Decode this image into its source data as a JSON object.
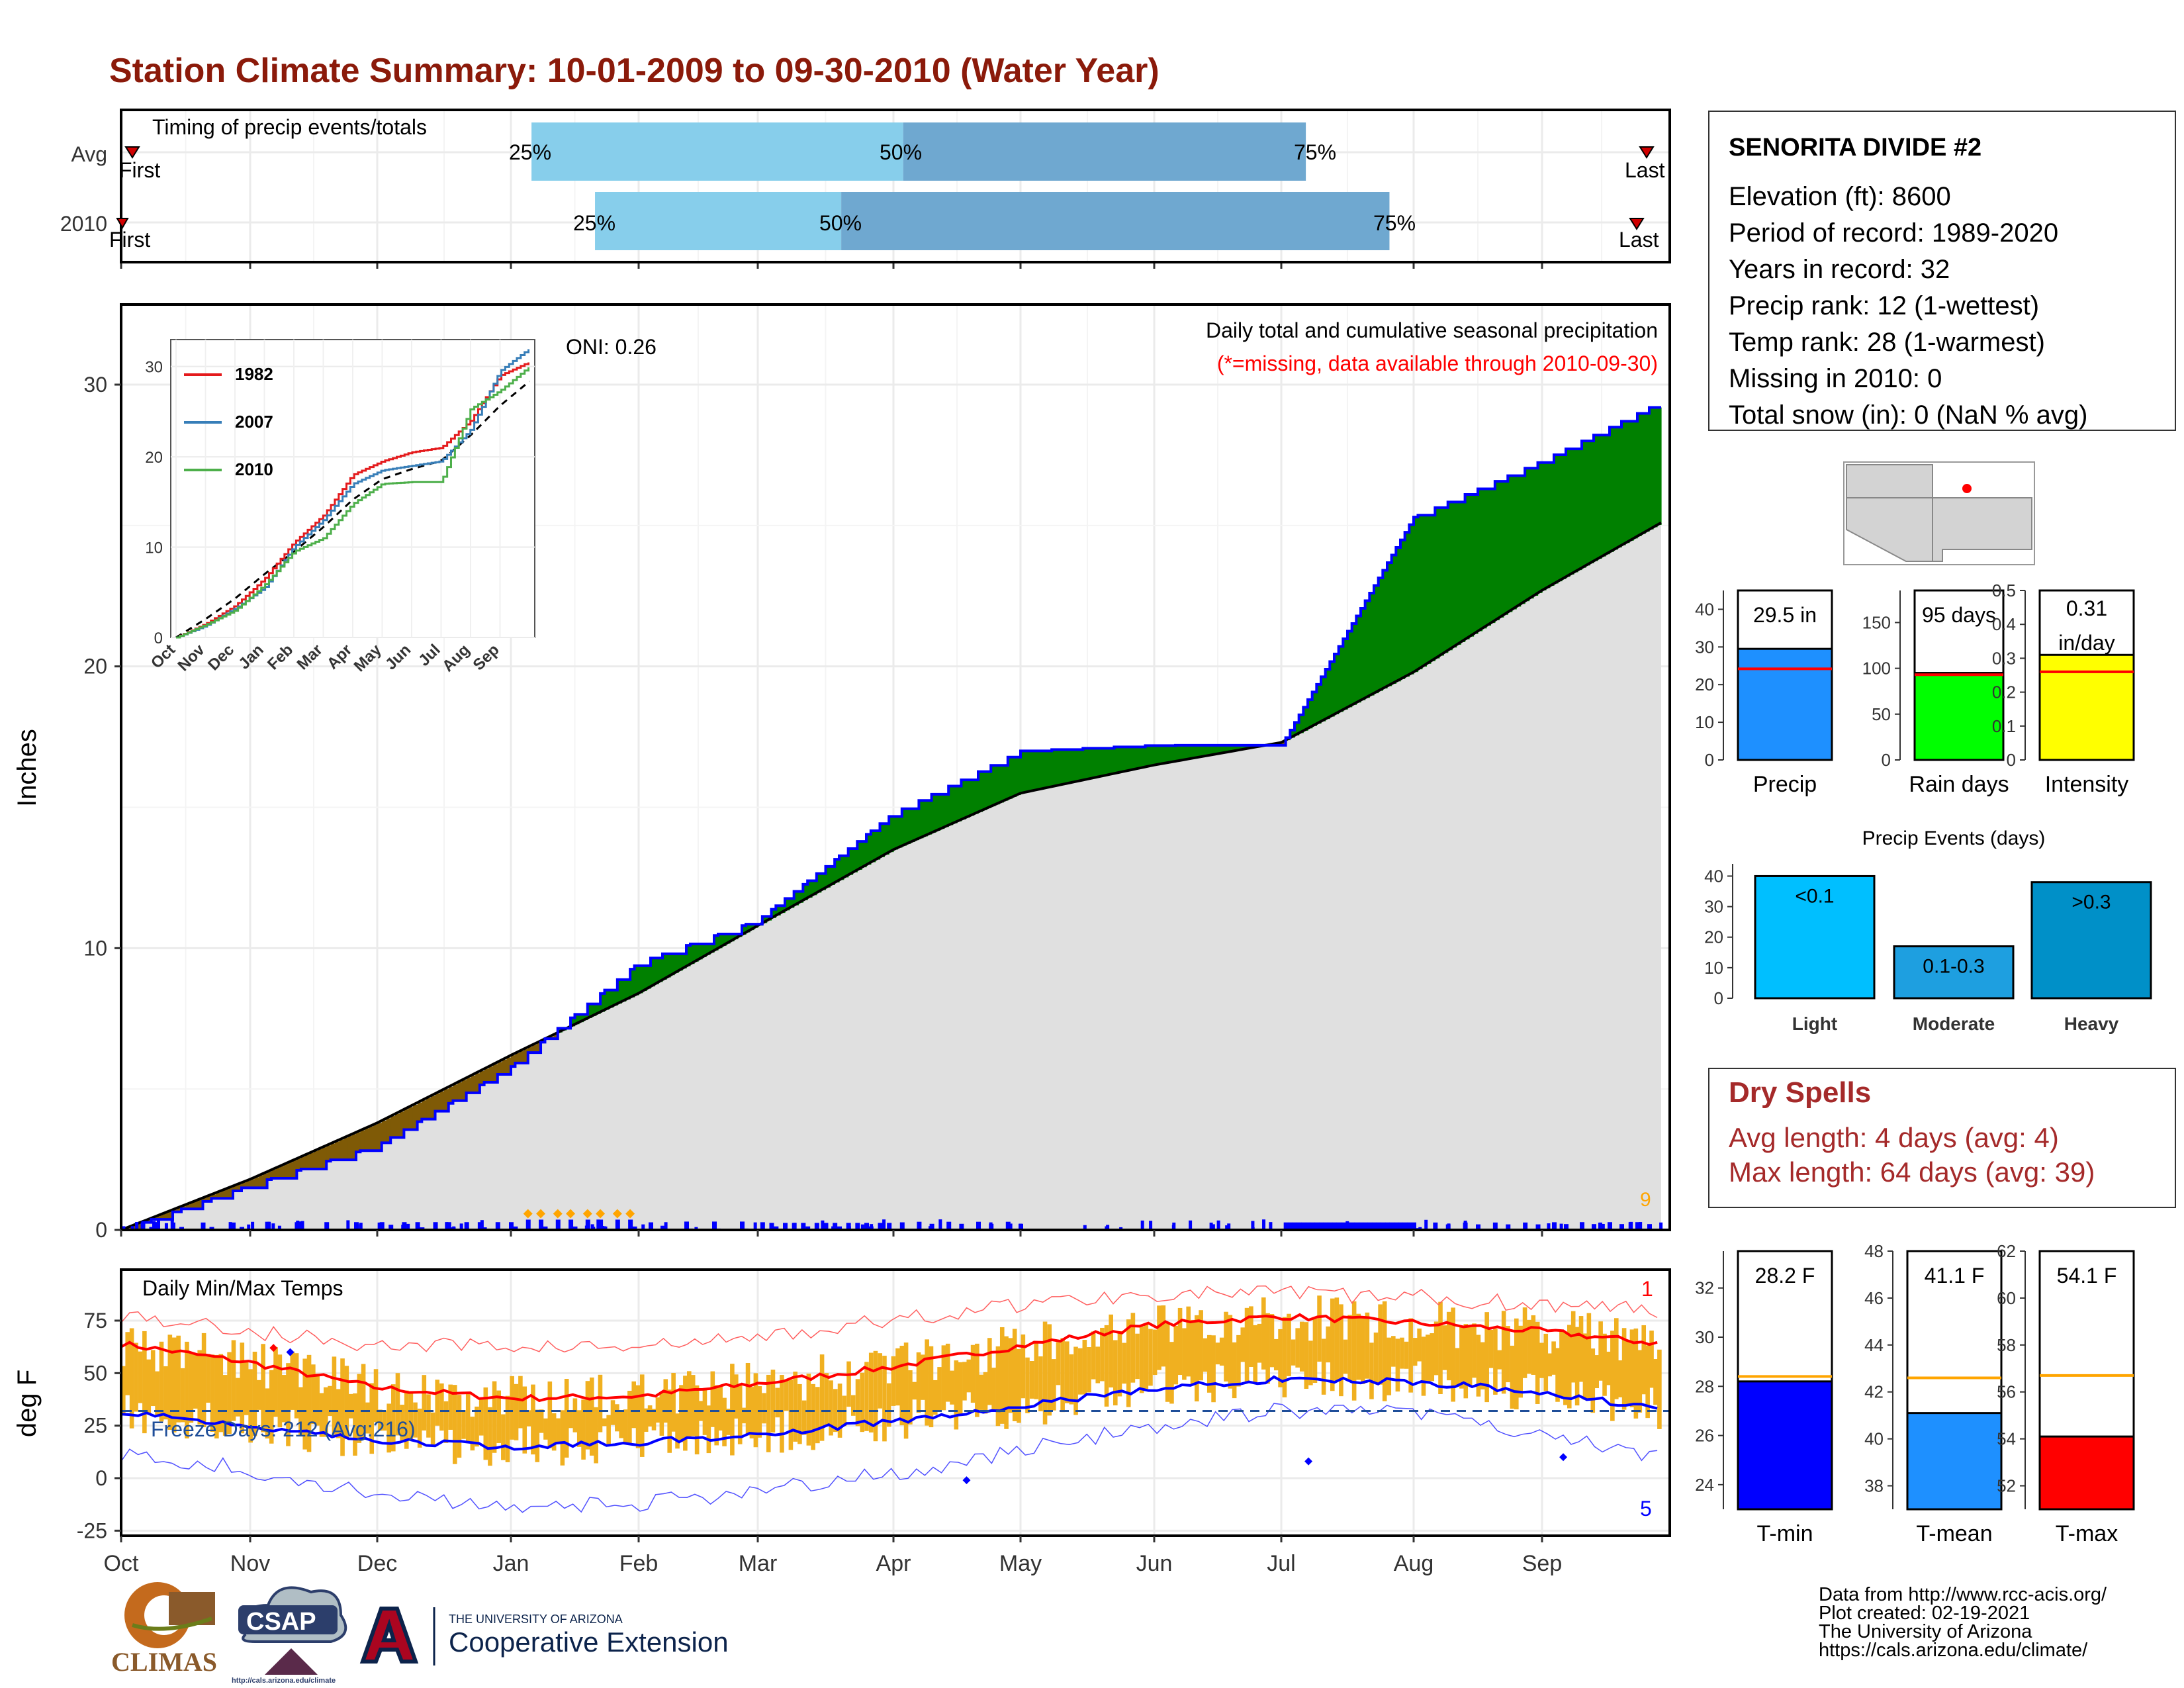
{
  "title": "Station Climate Summary: 10-01-2009 to 09-30-2010 (Water Year)",
  "colors": {
    "title": "#8b1a0a",
    "light_blue": "#87ceeb",
    "mid_blue": "#6fa8d0",
    "cum_line": "#0000ff",
    "above": "#008000",
    "below": "#7f5a06",
    "avg_fill": "#e0e0e0",
    "tmax": "#ff0000",
    "tmin": "#0000ff",
    "temp_bar": "#f0b020",
    "dry": "#a52a2a"
  },
  "timing": {
    "label": "Timing of precip events/totals",
    "rows": [
      {
        "name": "Avg",
        "first_label": "First",
        "last_label": "Last",
        "p25": 0.265,
        "p50": 0.505,
        "p75": 0.765,
        "p25_label": "25%",
        "p50_label": "50%",
        "p75_label": "75%"
      },
      {
        "name": "2010",
        "first_label": "First",
        "last_label": "Last",
        "p25": 0.306,
        "p50": 0.465,
        "p75": 0.819,
        "p25_label": "25%",
        "p50_label": "50%",
        "p75_label": "75%"
      }
    ]
  },
  "station_info": {
    "name": "SENORITA DIVIDE #2",
    "lines": [
      "Elevation (ft): 8600",
      "Period of record: 1989-2020",
      "Years in record: 32",
      "Precip rank: 12 (1-wettest)",
      "Temp rank: 28 (1-warmest)",
      "Missing in 2010: 0",
      "Total snow (in): 0 (NaN % avg)"
    ]
  },
  "precip_panel": {
    "ylabel": "Inches",
    "caption": "Daily total and cumulative seasonal precipitation",
    "missing_note": "(*=missing, data available through 2010-09-30)",
    "oni": "ONI: 0.26",
    "big_rain_label": "9"
  },
  "months": [
    "Oct",
    "Nov",
    "Dec",
    "Jan",
    "Feb",
    "Mar",
    "Apr",
    "May",
    "Jun",
    "Jul",
    "Aug",
    "Sep"
  ],
  "temp_panel": {
    "ylabel": "deg F",
    "label": "Daily Min/Max Temps",
    "freeze_label": "Freeze Days: 212 (Avg:216)",
    "record_high_count": "1",
    "record_low_count": "5"
  },
  "inset": {
    "legend": [
      "1982",
      "2007",
      "2010"
    ],
    "legend_colors": [
      "#e41a1c",
      "#377eb8",
      "#4daf4a"
    ]
  },
  "gauges": [
    {
      "value_label": "29.5 in",
      "axis_label": "Precip",
      "value": 29.5,
      "avg": 24.2,
      "ymax": 45,
      "ticks": [
        0,
        10,
        20,
        30,
        40
      ],
      "color": "#1e90ff"
    },
    {
      "value_label": "95 days",
      "axis_label": "Rain days",
      "value": 95,
      "avg": 93,
      "ymax": 185,
      "ticks": [
        0,
        50,
        100,
        150
      ],
      "color": "#00ff00"
    },
    {
      "value_label": "0.31 in/day",
      "axis_label": "Intensity",
      "value": 0.31,
      "avg": 0.26,
      "ymax": 0.5,
      "ticks": [
        0.0,
        0.1,
        0.2,
        0.3,
        0.4,
        0.5
      ],
      "color": "#ffff00"
    }
  ],
  "precip_events": {
    "title": "Precip Events (days)",
    "categories": [
      "Light",
      "Moderate",
      "Heavy"
    ],
    "bar_labels": [
      "<0.1",
      "0.1-0.3",
      ">0.3"
    ],
    "values": [
      40,
      17,
      38
    ],
    "ticks": [
      0,
      10,
      20,
      30,
      40
    ],
    "colors": [
      "#00bfff",
      "#1e9fe0",
      "#0090c8"
    ]
  },
  "dry_spells": {
    "title": "Dry Spells",
    "avg_line": "Avg length: 4 days (avg: 4)",
    "max_line": "Max length: 64 days (avg: 39)"
  },
  "temp_gauges": [
    {
      "value_label": "28.2 F",
      "axis_label": "T-min",
      "value": 28.2,
      "avg": 28.4,
      "ymin": 23,
      "ymax": 33.5,
      "ticks": [
        24,
        26,
        28,
        30,
        32
      ],
      "color": "#0000ff"
    },
    {
      "value_label": "41.1 F",
      "axis_label": "T-mean",
      "value": 41.1,
      "avg": 42.6,
      "ymin": 37,
      "ymax": 48,
      "ticks": [
        38,
        40,
        42,
        44,
        46,
        48
      ],
      "color": "#1e90ff"
    },
    {
      "value_label": "54.1 F",
      "axis_label": "T-max",
      "value": 54.1,
      "avg": 56.7,
      "ymin": 51,
      "ymax": 62,
      "ticks": [
        52,
        54,
        56,
        58,
        60,
        62
      ],
      "color": "#ff0000"
    }
  ],
  "footer": {
    "lines": [
      "Data from http://www.rcc-acis.org/",
      "Plot created: 02-19-2021",
      "The University of Arizona",
      "https://cals.arizona.edu/climate/"
    ],
    "logos": {
      "climas": "CLIMAS",
      "csap": "CSAP",
      "csap_url": "http://cals.arizona.edu/climate",
      "ua_small": "THE UNIVERSITY OF ARIZONA",
      "ua_big": "Cooperative Extension"
    }
  },
  "chart_data": [
    {
      "type": "area",
      "title": "Daily total and cumulative seasonal precipitation",
      "ylabel": "Inches",
      "ylim": [
        0,
        32
      ],
      "x_unit": "month start",
      "x": [
        "Oct",
        "Nov",
        "Dec",
        "Jan",
        "Feb",
        "Mar",
        "Apr",
        "May",
        "Jun",
        "Jul",
        "Aug",
        "Sep",
        "end"
      ],
      "series": [
        {
          "name": "2010",
          "values": [
            0.0,
            1.6,
            3.0,
            5.8,
            9.5,
            11.0,
            14.8,
            17.0,
            17.2,
            17.2,
            25.3,
            27.3,
            29.4
          ]
        },
        {
          "name": "Avg",
          "values": [
            0.0,
            1.8,
            3.8,
            6.2,
            8.4,
            10.8,
            13.5,
            15.5,
            16.5,
            17.3,
            19.8,
            22.7,
            25.1
          ]
        }
      ]
    },
    {
      "type": "line",
      "title": "Daily Min/Max Temps",
      "ylabel": "deg F",
      "ylim": [
        -27,
        97
      ],
      "x": [
        "Oct",
        "Nov",
        "Dec",
        "Jan",
        "Feb",
        "Mar",
        "Apr",
        "May",
        "Jun",
        "Jul",
        "Aug",
        "Sep",
        "end"
      ],
      "series": [
        {
          "name": "avg max",
          "values": [
            64,
            55,
            43,
            38,
            39,
            45,
            53,
            63,
            73,
            77,
            74,
            70,
            64
          ]
        },
        {
          "name": "avg min",
          "values": [
            32,
            25,
            18,
            15,
            17,
            21,
            27,
            34,
            43,
            47,
            46,
            41,
            33
          ]
        },
        {
          "name": "record high",
          "values": [
            78,
            70,
            63,
            63,
            62,
            67,
            75,
            83,
            88,
            88,
            86,
            83,
            80
          ]
        },
        {
          "name": "record low",
          "values": [
            12,
            4,
            -8,
            -15,
            -12,
            -6,
            2,
            13,
            25,
            32,
            31,
            20,
            10
          ]
        },
        {
          "name": "freeze",
          "values": [
            32,
            32,
            32,
            32,
            32,
            32,
            32,
            32,
            32,
            32,
            32,
            32,
            32
          ]
        }
      ]
    },
    {
      "type": "bar",
      "title": "Precip Events (days)",
      "categories": [
        "Light",
        "Moderate",
        "Heavy"
      ],
      "values": [
        40,
        17,
        38
      ]
    }
  ]
}
